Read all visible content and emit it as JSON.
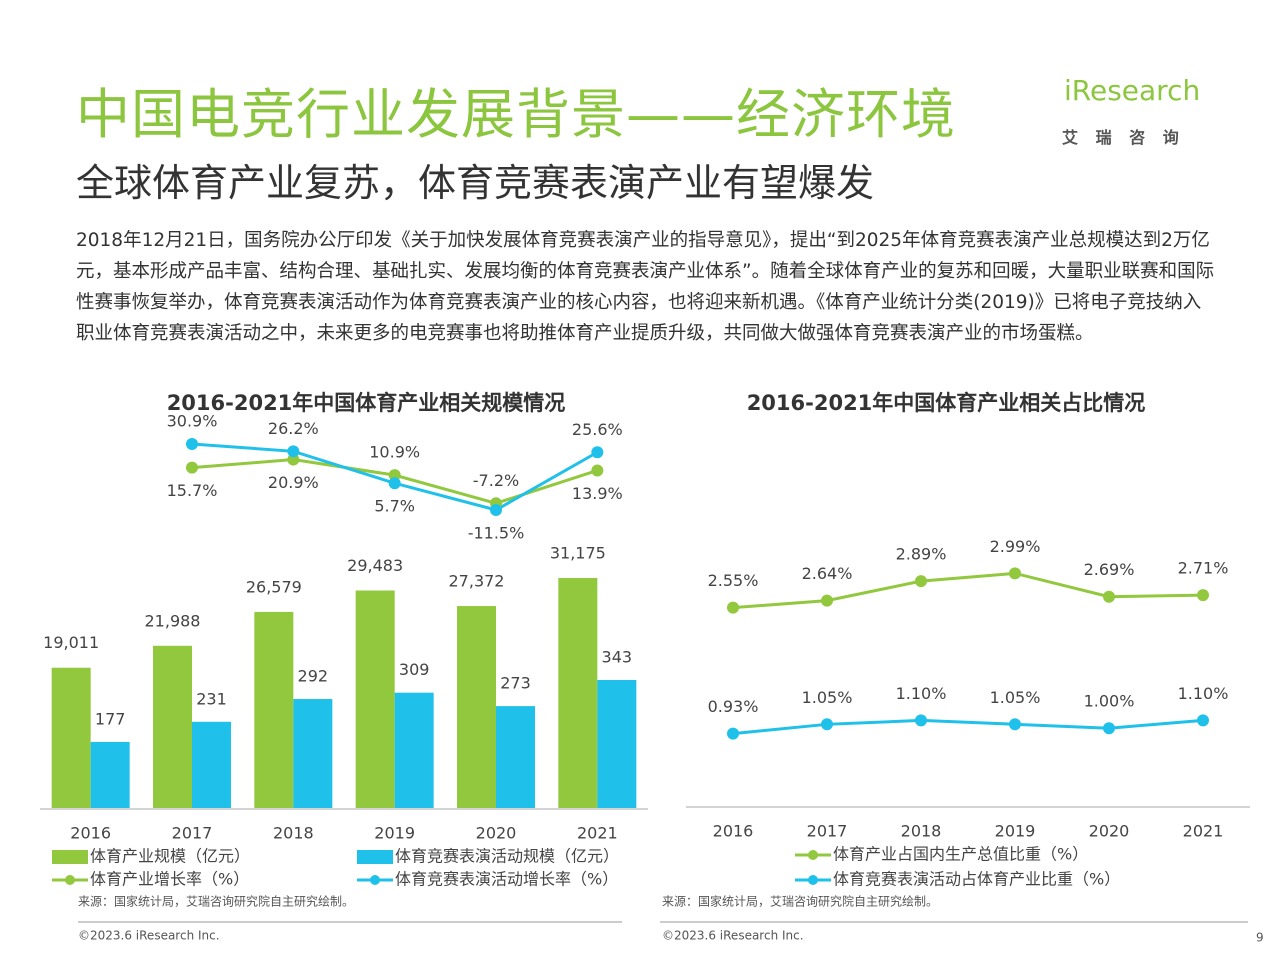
{
  "header": {
    "title": "中国电竞行业发展背景——经济环境",
    "subtitle": "全球体育产业复苏，体育竞赛表演产业有望爆发",
    "logo": "iResearch",
    "logo_cn": "艾 瑞 咨 询"
  },
  "body": "2018年12月21日，国务院办公厅印发《关于加快发展体育竞赛表演产业的指导意见》，提出“到2025年体育竞赛表演产业总规模达到2万亿元，基本形成产品丰富、结构合理、基础扎实、发展均衡的体育竞赛表演产业体系”。随着全球体育产业的复苏和回暖，大量职业联赛和国际性赛事恢复举办，体育竞赛表演活动作为体育竞赛表演产业的核心内容，也将迎来新机遇。《体育产业统计分类(2019)》已将电子竞技纳入职业体育竞赛表演活动之中，未来更多的电竞赛事也将助推体育产业提质升级，共同做大做强体育竞赛表演产业的市场蛋糕。",
  "footer": {
    "source_left": "来源：国家统计局，艾瑞咨询研究院自主研究绘制。",
    "source_right": "来源：国家统计局，艾瑞咨询研究院自主研究绘制。",
    "copyright_left": "©2023.6 iResearch Inc.",
    "copyright_right": "©2023.6 iResearch Inc.",
    "page": "9"
  },
  "chart_data": [
    {
      "type": "bar",
      "title": "2016-2021年中国体育产业相关规模情况",
      "categories": [
        "2016",
        "2017",
        "2018",
        "2019",
        "2020",
        "2021"
      ],
      "series": [
        {
          "name": "体育产业规模（亿元）",
          "type": "bar",
          "color": "#92c83e",
          "values": [
            19011,
            21988,
            26579,
            29483,
            27372,
            31175
          ],
          "value_labels": [
            "19,011",
            "21,988",
            "26,579",
            "29,483",
            "27,372",
            "31,175"
          ]
        },
        {
          "name": "体育竞赛表演活动规模（亿元）",
          "type": "bar",
          "color": "#1fc1ea",
          "values": [
            177,
            231,
            292,
            309,
            273,
            343
          ]
        },
        {
          "name": "体育产业增长率（%）",
          "type": "line",
          "color": "#92c83e",
          "values": [
            null,
            15.7,
            20.9,
            10.9,
            -7.2,
            13.9
          ],
          "value_labels": [
            null,
            "15.7%",
            "20.9%",
            "10.9%",
            "-7.2%",
            "13.9%"
          ]
        },
        {
          "name": "体育竞赛表演活动增长率（%）",
          "type": "line",
          "color": "#1fc1ea",
          "values": [
            null,
            30.9,
            26.2,
            5.7,
            -11.5,
            25.6
          ],
          "value_labels": [
            null,
            "30.9%",
            "26.2%",
            "5.7%",
            "-11.5%",
            "25.6%"
          ]
        }
      ]
    },
    {
      "type": "line",
      "title": "2016-2021年中国体育产业相关占比情况",
      "categories": [
        "2016",
        "2017",
        "2018",
        "2019",
        "2020",
        "2021"
      ],
      "series": [
        {
          "name": "体育产业占国内生产总值比重（%）",
          "color": "#92c83e",
          "values": [
            2.55,
            2.64,
            2.89,
            2.99,
            2.69,
            2.71
          ],
          "value_labels": [
            "2.55%",
            "2.64%",
            "2.89%",
            "2.99%",
            "2.69%",
            "2.71%"
          ]
        },
        {
          "name": "体育竞赛表演活动占体育产业比重（%）",
          "color": "#1fc1ea",
          "values": [
            0.93,
            1.05,
            1.1,
            1.05,
            1.0,
            1.1
          ],
          "value_labels": [
            "0.93%",
            "1.05%",
            "1.10%",
            "1.05%",
            "1.00%",
            "1.10%"
          ]
        }
      ]
    }
  ]
}
